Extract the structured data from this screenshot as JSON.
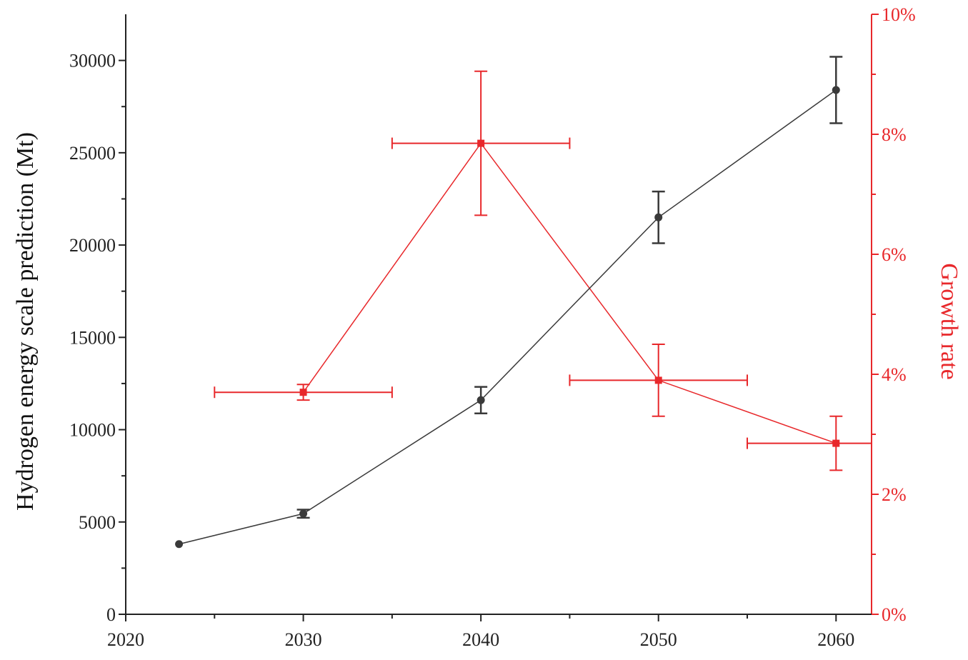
{
  "chart_data": {
    "type": "line",
    "xlabel": "",
    "ylabel": "Hydrogen energy scale prediction (Mt)",
    "y2label": "Growth rate",
    "xlim": [
      2020,
      2062
    ],
    "ylim": [
      0,
      32500
    ],
    "y2lim": [
      0,
      10
    ],
    "x_ticks": [
      "2020",
      "2030",
      "2040",
      "2050",
      "2060"
    ],
    "y_ticks": [
      "0",
      "5000",
      "10000",
      "15000",
      "20000",
      "25000",
      "30000"
    ],
    "y2_ticks": [
      "0%",
      "2%",
      "4%",
      "6%",
      "8%",
      "10%"
    ],
    "colors": {
      "axis": "#222222",
      "scale_series": "#3a3a3a",
      "growth_series": "#e8282b"
    },
    "series": [
      {
        "axis": "left",
        "marker": "circle",
        "x": [
          2023,
          2030,
          2040,
          2050,
          2060
        ],
        "y": [
          3800,
          5450,
          11600,
          21500,
          28400
        ],
        "y_err": [
          0,
          220,
          720,
          1400,
          1800
        ]
      },
      {
        "axis": "right",
        "marker": "square",
        "x": [
          2030,
          2040,
          2050,
          2060
        ],
        "y": [
          3.7,
          7.85,
          3.9,
          2.85
        ],
        "y_err": [
          0.13,
          1.2,
          0.6,
          0.45
        ],
        "x_err": [
          5,
          5,
          5,
          5
        ]
      }
    ]
  }
}
